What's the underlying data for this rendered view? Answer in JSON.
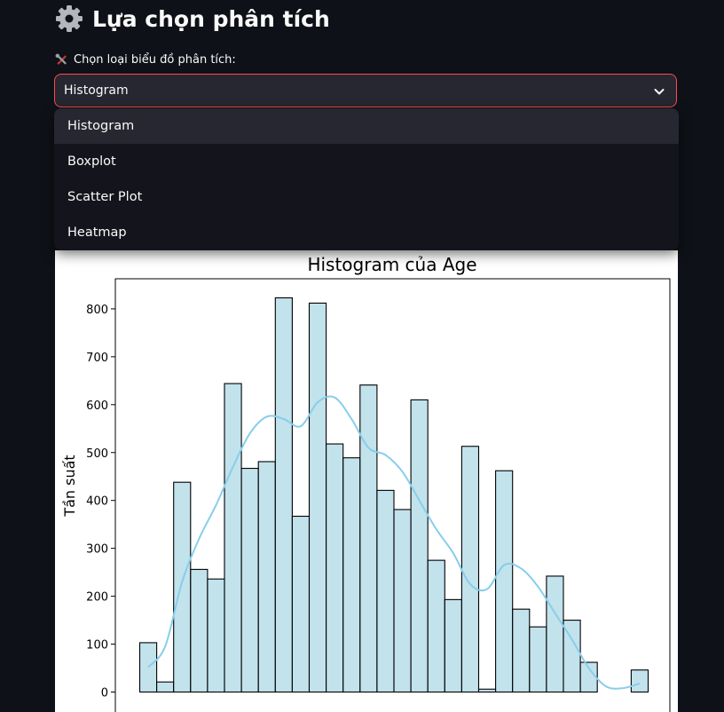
{
  "header": {
    "icon": "gear-icon",
    "title": "Lựa chọn phân tích"
  },
  "select": {
    "label_icon": "tools-icon",
    "label": "Chọn loại biểu đồ phân tích:",
    "value": "Histogram",
    "options": [
      "Histogram",
      "Boxplot",
      "Scatter Plot",
      "Heatmap"
    ],
    "selected_index": 0,
    "accent_color": "#ff4b4b"
  },
  "chart_data": {
    "type": "bar",
    "title": "Histogram của Age",
    "ylabel": "Tần suất",
    "xlabel": "",
    "ylim": [
      0,
      860
    ],
    "yticks": [
      0,
      100,
      200,
      300,
      400,
      500,
      600,
      700,
      800
    ],
    "grid": false,
    "bar_color": "#add8e6",
    "kde_color": "#87ceeb",
    "values": [
      103,
      21,
      438,
      256,
      236,
      644,
      467,
      481,
      823,
      367,
      812,
      518,
      489,
      641,
      421,
      381,
      610,
      275,
      193,
      513,
      6,
      462,
      173,
      136,
      242,
      150,
      62,
      0,
      0,
      46
    ],
    "kde": [
      52,
      95,
      230,
      320,
      390,
      470,
      540,
      575,
      570,
      555,
      605,
      615,
      570,
      510,
      495,
      460,
      400,
      340,
      290,
      225,
      215,
      265,
      258,
      220,
      165,
      110,
      50,
      12,
      8,
      18
    ]
  }
}
